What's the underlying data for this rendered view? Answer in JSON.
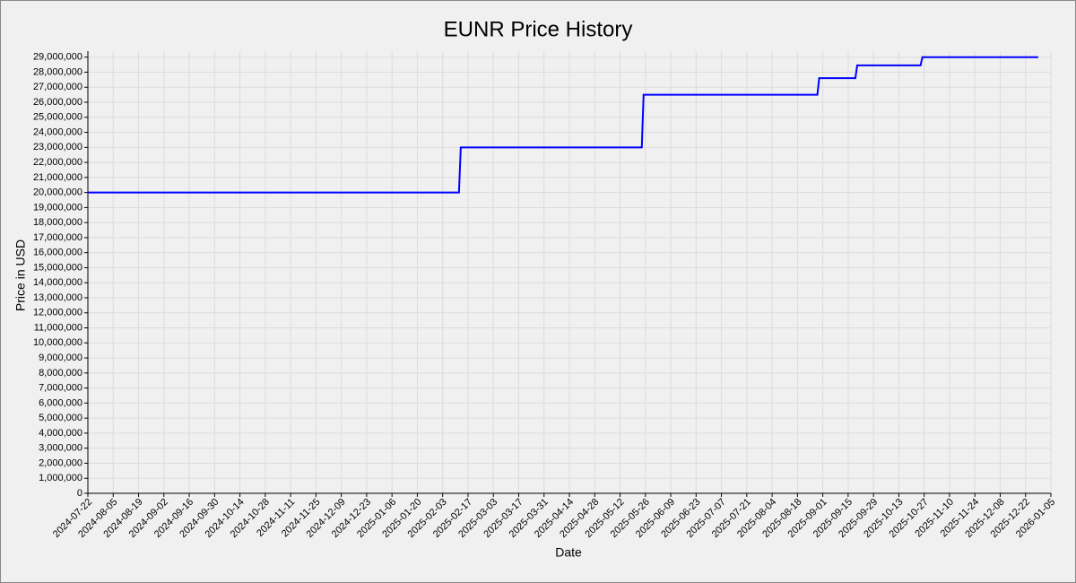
{
  "chart_data": {
    "type": "line",
    "title": "EUNR Price History",
    "x_label": "Date",
    "y_label": "Price in USD",
    "x": [
      "2024-07-22",
      "2025-02-12",
      "2025-02-13",
      "2025-05-24",
      "2025-05-25",
      "2025-08-29",
      "2025-08-30",
      "2025-09-19",
      "2025-09-20",
      "2025-10-25",
      "2025-10-26",
      "2025-12-29"
    ],
    "values": [
      20000000,
      20000000,
      23000000,
      23000000,
      26500000,
      26500000,
      27600000,
      27600000,
      28450000,
      28450000,
      29000000,
      29000000
    ],
    "color": "#0000ff",
    "xlim": [
      "2024-07-22",
      "2026-01-05"
    ],
    "xticks": [
      "2024-07-22",
      "2024-08-05",
      "2024-08-19",
      "2024-09-02",
      "2024-09-16",
      "2024-09-30",
      "2024-10-14",
      "2024-10-28",
      "2024-11-11",
      "2024-11-25",
      "2024-12-09",
      "2024-12-23",
      "2025-01-06",
      "2025-01-20",
      "2025-02-03",
      "2025-02-17",
      "2025-03-03",
      "2025-03-17",
      "2025-03-31",
      "2025-04-14",
      "2025-04-28",
      "2025-05-12",
      "2025-05-26",
      "2025-06-09",
      "2025-06-23",
      "2025-07-07",
      "2025-07-21",
      "2025-08-04",
      "2025-08-18",
      "2025-09-01",
      "2025-09-15",
      "2025-09-29",
      "2025-10-13",
      "2025-10-27",
      "2025-11-10",
      "2025-11-24",
      "2025-12-08",
      "2025-12-22",
      "2026-01-05"
    ],
    "ylim": [
      0,
      29400000
    ],
    "yticks": [
      0,
      {
        "value": 1000000,
        "label": "1,000,000"
      },
      {
        "value": 2000000,
        "label": "2,000,000"
      },
      {
        "value": 3000000,
        "label": "3,000,000"
      },
      {
        "value": 4000000,
        "label": "4,000,000"
      },
      {
        "value": 5000000,
        "label": "5,000,000"
      },
      {
        "value": 6000000,
        "label": "6,000,000"
      },
      {
        "value": 7000000,
        "label": "7,000,000"
      },
      {
        "value": 8000000,
        "label": "8,000,000"
      },
      {
        "value": 9000000,
        "label": "9,000,000"
      },
      {
        "value": 10000000,
        "label": "10,000,000"
      },
      {
        "value": 11000000,
        "label": "11,000,000"
      },
      {
        "value": 12000000,
        "label": "12,000,000"
      },
      {
        "value": 13000000,
        "label": "13,000,000"
      },
      {
        "value": 14000000,
        "label": "14,000,000"
      },
      {
        "value": 15000000,
        "label": "15,000,000"
      },
      {
        "value": 16000000,
        "label": "16,000,000"
      },
      {
        "value": 17000000,
        "label": "17,000,000"
      },
      {
        "value": 18000000,
        "label": "18,000,000"
      },
      {
        "value": 19000000,
        "label": "19,000,000"
      },
      {
        "value": 20000000,
        "label": "20,000,000"
      },
      {
        "value": 21000000,
        "label": "21,000,000"
      },
      {
        "value": 22000000,
        "label": "22,000,000"
      },
      {
        "value": 23000000,
        "label": "23,000,000"
      },
      {
        "value": 24000000,
        "label": "24,000,000"
      },
      {
        "value": 25000000,
        "label": "25,000,000"
      },
      {
        "value": 26000000,
        "label": "26,000,000"
      },
      {
        "value": 27000000,
        "label": "27,000,000"
      },
      {
        "value": 28000000,
        "label": "28,000,000"
      },
      {
        "value": 29000000,
        "label": "29,000,000"
      }
    ],
    "grid": true
  }
}
